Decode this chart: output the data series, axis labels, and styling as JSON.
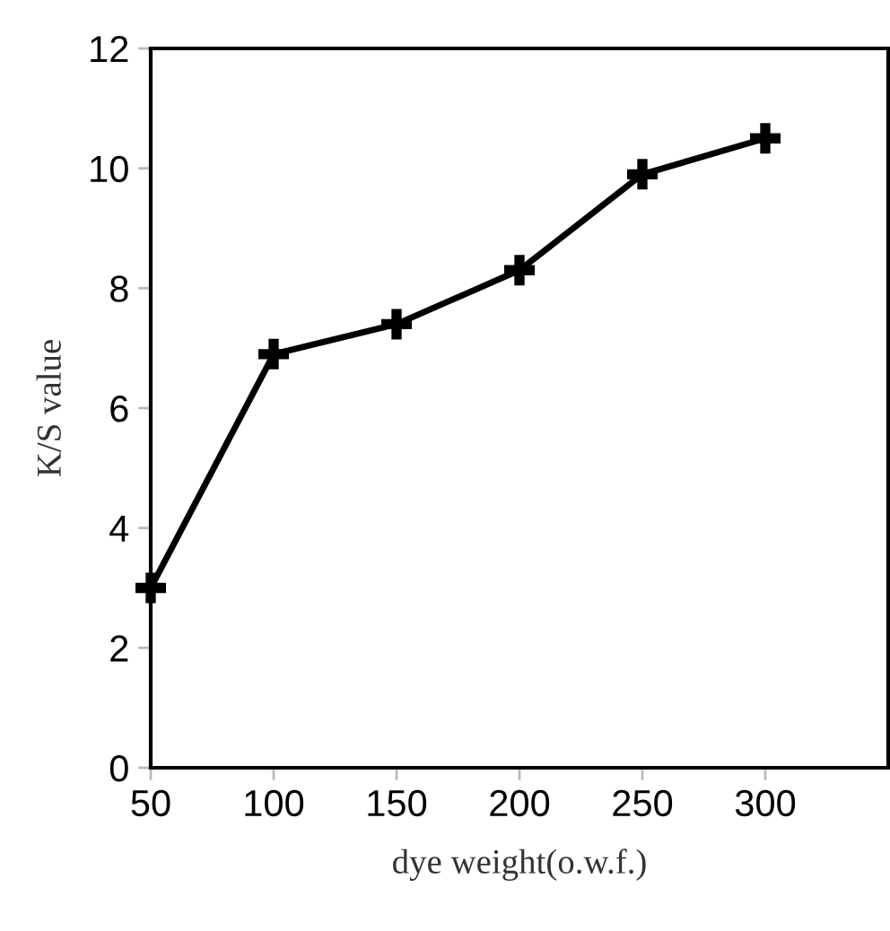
{
  "chart_data": {
    "type": "line",
    "xlabel": "dye weight(o.w.f.)",
    "ylabel": "K/S value",
    "x": [
      50,
      100,
      150,
      200,
      250,
      300
    ],
    "series": [
      {
        "color": "#000000",
        "values": [
          3.0,
          6.9,
          7.4,
          8.3,
          9.9,
          10.5
        ]
      }
    ],
    "xlim": [
      50,
      350
    ],
    "xticks": [
      50,
      100,
      150,
      200,
      250,
      300
    ],
    "ylim": [
      0,
      12
    ],
    "yticks": [
      0,
      2,
      4,
      6,
      8,
      10,
      12
    ],
    "grid": false,
    "marker": "cross",
    "line_style": "solid"
  }
}
